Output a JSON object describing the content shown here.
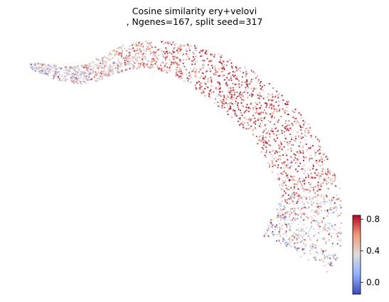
{
  "chart_data": {
    "type": "scatter",
    "title_line1": "Cosine similarity ery+velovi",
    "title_line2": ", Ngenes=167, split seed=317",
    "xlabel": "",
    "ylabel": "",
    "axes_visible": false,
    "grid": false,
    "point_count_estimate": 8000,
    "point_size": "small",
    "description_of_shape": "arc-shaped 2D embedding: thin tail upper-left, broad arch across the top, descending band to a wide blob lower-right",
    "value_pattern": [
      {
        "region": "upper-left tail",
        "typical_value": 0.3
      },
      {
        "region": "arch top-left",
        "typical_value": 0.45
      },
      {
        "region": "arch center",
        "typical_value": 0.75
      },
      {
        "region": "descending band",
        "typical_value": 0.65
      },
      {
        "region": "lower-right blob",
        "typical_value": 0.4
      }
    ],
    "colorbar": {
      "colormap": "coolwarm",
      "vmin": -0.15,
      "vmax": 0.85,
      "ticks": [
        0.0,
        0.4,
        0.8
      ],
      "tick_labels": [
        "0.0",
        "0.4",
        "0.8"
      ],
      "placement": "right"
    }
  }
}
